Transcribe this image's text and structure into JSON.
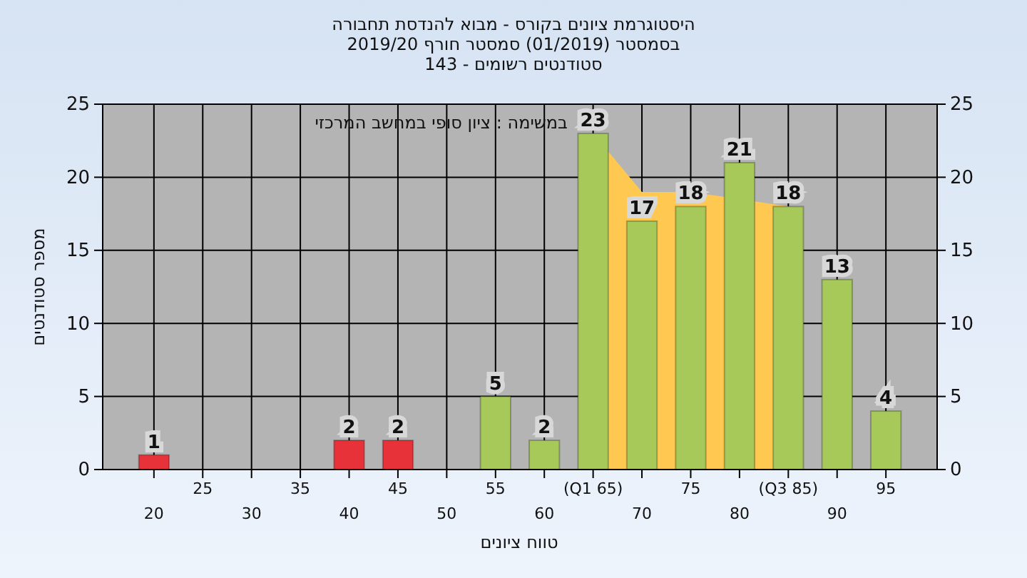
{
  "chart_data": {
    "type": "bar",
    "title": "היסטוגרמת ציונים בקורס - מבוא להנדסת תחבורה",
    "subtitle": "בסמסטר  (01/2019)  סמסטר חורף 2019/20\nסטודנטים רשומים - 143",
    "xlabel": "טווח ציונים",
    "ylabel": "מספר סטודנטים",
    "annotations": [
      "במשימה : ציון סופי במחשב המרכזי"
    ],
    "categories": [
      "20",
      "25",
      "30",
      "35",
      "40",
      "45",
      "50",
      "55",
      "60",
      "(Q1 65)",
      "70",
      "75",
      "80",
      "(Q3 85)",
      "90",
      "95"
    ],
    "series": [
      {
        "type": "area",
        "color": "#ffc850",
        "values": [
          null,
          null,
          null,
          null,
          null,
          null,
          null,
          null,
          null,
          23,
          19,
          19,
          null,
          18,
          null,
          null
        ]
      },
      {
        "colors": [
          "#e8323a",
          "#e8323a",
          "#e8323a",
          "#e8323a",
          "#e8323a",
          "#e8323a",
          "#e8323a",
          "#a6c95a",
          "#a6c95a",
          "#a6c95a",
          "#a6c95a",
          "#a6c95a",
          "#a6c95a",
          "#a6c95a",
          "#a6c95a",
          "#a6c95a"
        ],
        "values": [
          1,
          0,
          0,
          0,
          2,
          2,
          0,
          5,
          2,
          23,
          17,
          18,
          21,
          18,
          13,
          4
        ],
        "value_labels": [
          "1",
          null,
          null,
          null,
          "2",
          "2",
          null,
          "5",
          "2",
          "23",
          "17",
          "18",
          "21",
          "18",
          "13",
          "4"
        ]
      }
    ],
    "ylim": [
      0,
      25
    ],
    "yticks": [
      0,
      5,
      10,
      15,
      20,
      25
    ],
    "y2lim": [
      0,
      25
    ],
    "y2ticks": [
      0,
      5,
      10,
      15,
      20,
      25
    ],
    "grid": true
  }
}
